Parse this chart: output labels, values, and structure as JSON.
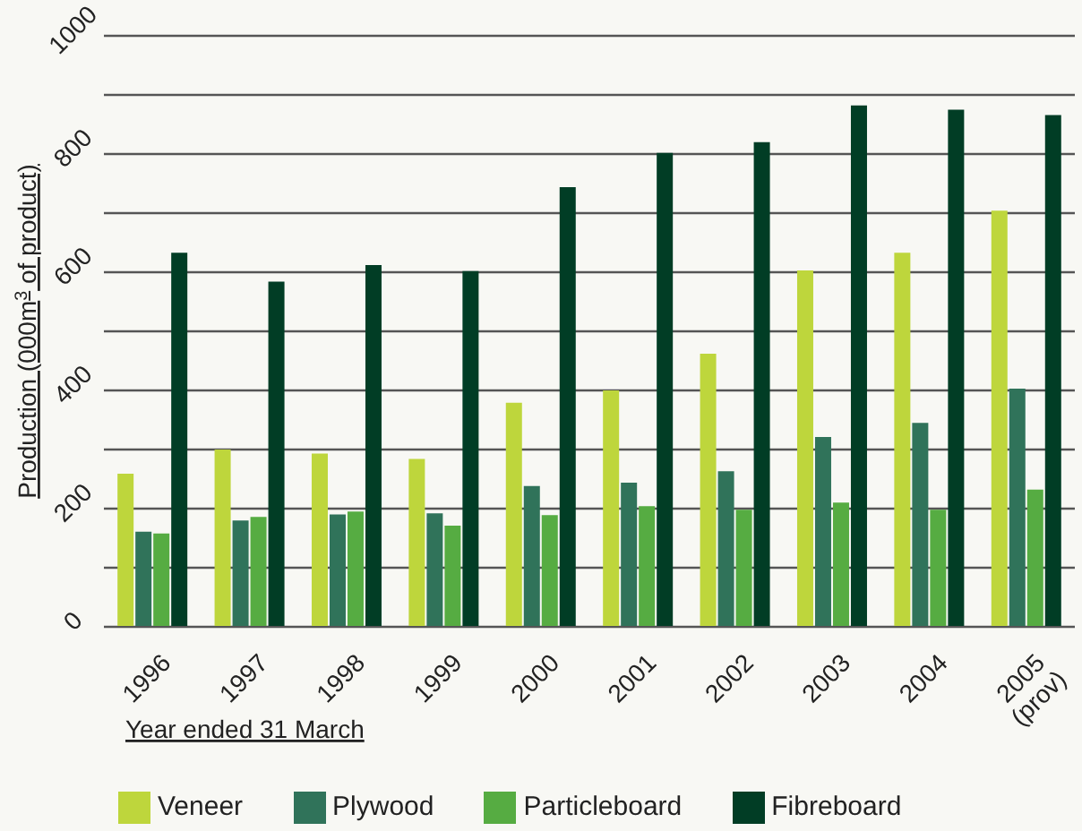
{
  "chart_data": {
    "type": "bar",
    "xlabel": "Year ended 31 March",
    "ylabel": "Production (000m$^{3}$ of product)",
    "categories": [
      "1996",
      "1997",
      "1998",
      "1999",
      "2000",
      "2001",
      "2002",
      "2003",
      "2004",
      "2005 (prov)"
    ],
    "series": [
      {
        "name": "Veneer",
        "color": "#bed63c",
        "values": [
          259,
          300,
          293,
          284,
          379,
          400,
          462,
          603,
          633,
          704
        ]
      },
      {
        "name": "Plywood",
        "color": "#30735a",
        "values": [
          161,
          180,
          190,
          192,
          238,
          244,
          263,
          321,
          345,
          403
        ]
      },
      {
        "name": "Particleboard",
        "color": "#56ac42",
        "values": [
          158,
          186,
          195,
          171,
          189,
          204,
          198,
          210,
          198,
          232
        ]
      },
      {
        "name": "Fibreboard",
        "color": "#013d25",
        "values": [
          633,
          584,
          612,
          602,
          744,
          802,
          820,
          882,
          875,
          866
        ]
      }
    ],
    "ylim": [
      0,
      1000
    ],
    "yticks": [
      0,
      {
        "value": 100,
        "label": null
      },
      200,
      {
        "value": 300,
        "label": null
      },
      400,
      {
        "value": 500,
        "label": null
      },
      600,
      {
        "value": 700,
        "label": null
      },
      800,
      {
        "value": 900,
        "label": null
      },
      1000
    ],
    "grid": "y",
    "legend": "bottom"
  }
}
